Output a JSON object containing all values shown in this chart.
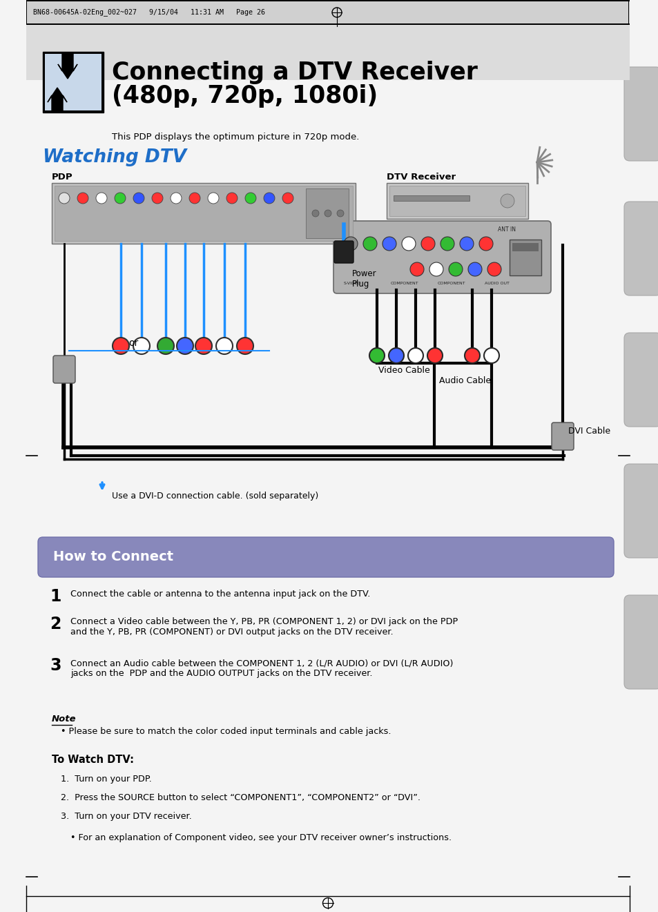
{
  "page_header": "BN68-00645A-02Eng_002~027   9/15/04   11:31 AM   Page 26",
  "title_line1": "Connecting a DTV Receiver",
  "title_line2": "(480p, 720p, 1080i)",
  "subtitle": "This PDP displays the optimum picture in 720p mode.",
  "watching_dtv": "Watching DTV",
  "pdp_label": "PDP",
  "dtv_label": "DTV Receiver",
  "power_plug": "Power\nPlug",
  "video_cable": "Video Cable",
  "audio_cable": "Audio Cable",
  "dvi_cable": "DVI Cable",
  "or_text": "or",
  "dvi_note": "Use a DVI-D connection cable. (sold separately)",
  "how_to_connect": "How to Connect",
  "step1": "Connect the cable or antenna to the antenna input jack on the DTV.",
  "step2_line1": "Connect a Video cable between the Y, PB, PR (COMPONENT 1, 2) or DVI jack on the PDP",
  "step2_line2": "and the Y, PB, PR (COMPONENT) or DVI output jacks on the DTV receiver.",
  "step3_line1": "Connect an Audio cable between the COMPONENT 1, 2 (L/R AUDIO) or DVI (L/R AUDIO)",
  "step3_line2": "jacks on the  PDP and the AUDIO OUTPUT jacks on the DTV receiver.",
  "note_title": "Note",
  "note_bullet": "Please be sure to match the color coded input terminals and cable jacks.",
  "to_watch_title": "To Watch DTV:",
  "watch_step1": "Turn on your PDP.",
  "watch_step2": "Press the SOURCE button to select “COMPONENT1”, “COMPONENT2” or “DVI”.",
  "watch_step3": "Turn on your DTV receiver.",
  "watch_bullet": "For an explanation of Component video, see your DTV receiver owner’s instructions.",
  "bg_color": "#ffffff",
  "watching_dtv_color": "#1e6ec8",
  "how_to_connect_bg": "#8888bb",
  "side_tab_color": "#c8c8c8"
}
